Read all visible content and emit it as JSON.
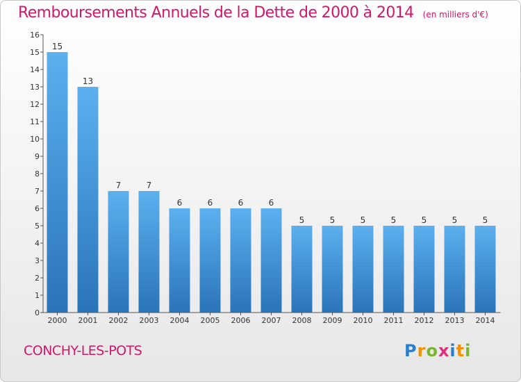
{
  "chart_data": {
    "type": "bar",
    "title": "Remboursements Annuels de la Dette de 2000 à 2014",
    "unit_label": "(en milliers d'€)",
    "categories": [
      "2000",
      "2001",
      "2002",
      "2003",
      "2004",
      "2005",
      "2006",
      "2007",
      "2008",
      "2009",
      "2010",
      "2011",
      "2012",
      "2013",
      "2014"
    ],
    "values": [
      15,
      13,
      7,
      7,
      6,
      6,
      6,
      6,
      5,
      5,
      5,
      5,
      5,
      5,
      5
    ],
    "ylim": [
      0,
      16
    ],
    "yticks": [
      0,
      1,
      2,
      3,
      4,
      5,
      6,
      7,
      8,
      9,
      10,
      11,
      12,
      13,
      14,
      15,
      16
    ],
    "grid": false,
    "colors": {
      "bar_top": "#5cb0ee",
      "bar_bottom": "#2a74b8",
      "title": "#d0186b"
    }
  },
  "footer": {
    "town": "CONCHY-LES-POTS",
    "brand": [
      "P",
      "r",
      "o",
      "x",
      "i",
      "t",
      "i"
    ]
  }
}
